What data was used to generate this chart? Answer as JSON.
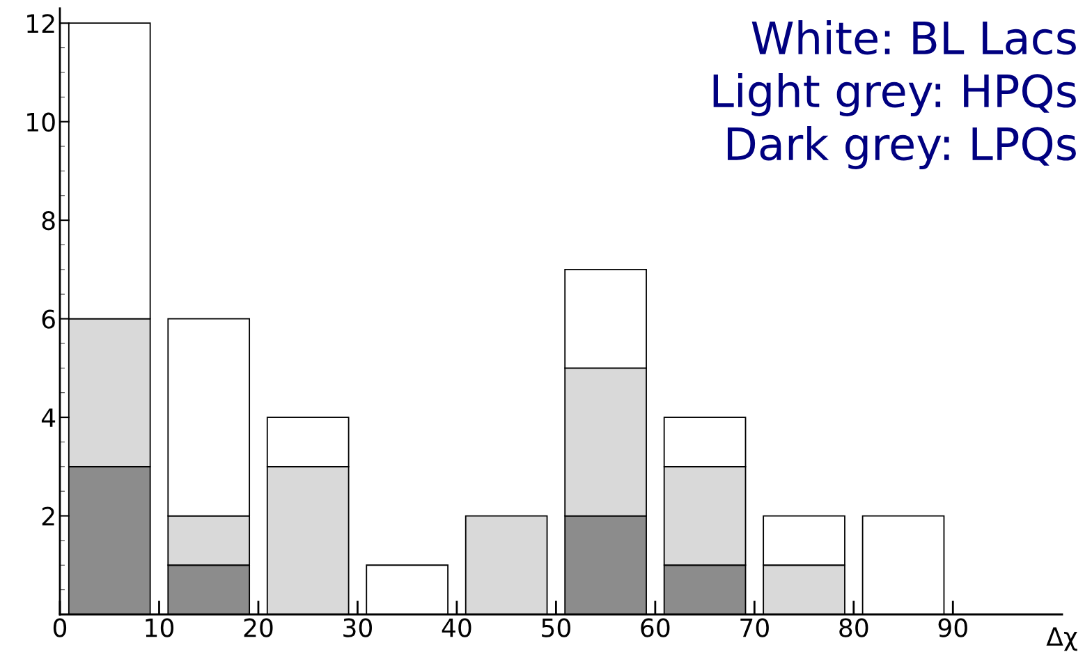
{
  "chart_data": {
    "type": "bar",
    "stacked": true,
    "xlabel": "Δχ",
    "x": [
      5,
      15,
      25,
      35,
      45,
      55,
      65,
      75,
      85
    ],
    "series": [
      {
        "color": "#8c8c8c",
        "values": [
          3,
          1,
          0,
          0,
          0,
          2,
          1,
          0,
          0
        ]
      },
      {
        "color": "#d9d9d9",
        "values": [
          3,
          1,
          3,
          0,
          2,
          3,
          2,
          1,
          0
        ]
      },
      {
        "color": "#ffffff",
        "values": [
          6,
          4,
          1,
          1,
          0,
          2,
          1,
          1,
          2
        ]
      }
    ],
    "xlim": [
      0,
      101
    ],
    "xticks": [
      0,
      10,
      20,
      30,
      40,
      50,
      60,
      70,
      80,
      90
    ],
    "ylim": [
      0,
      12.3
    ],
    "yticks": [
      2,
      4,
      6,
      8,
      10,
      12
    ],
    "grid": false,
    "legend": false,
    "annotations": [
      "White: BL Lacs",
      "Light grey: HPQs",
      "Dark grey: LPQs"
    ]
  }
}
